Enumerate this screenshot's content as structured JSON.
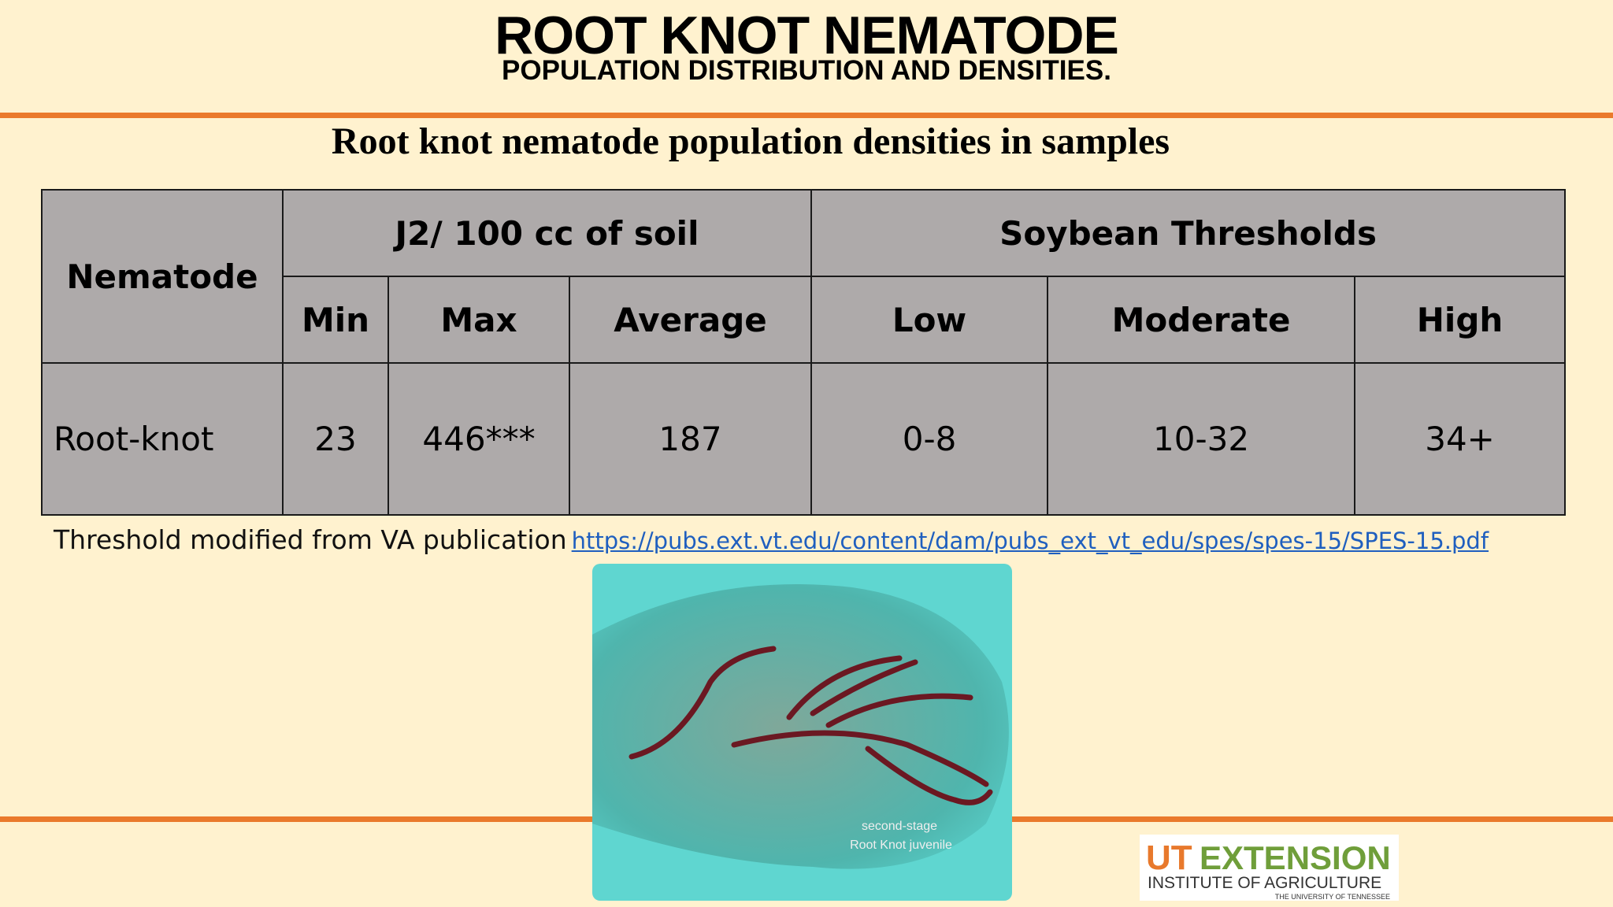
{
  "header": {
    "title": "ROOT KNOT NEMATODE",
    "subtitle": "POPULATION DISTRIBUTION AND DENSITIES."
  },
  "table": {
    "title": "Root knot nematode population densities in samples",
    "row_header": "Nematode",
    "group_headers": [
      "J2/ 100 cc of soil",
      "Soybean Thresholds"
    ],
    "columns": [
      "Min",
      "Max",
      "Average",
      "Low",
      "Moderate",
      "High"
    ],
    "rows": [
      [
        "Root-knot",
        "23",
        "446***",
        "187",
        "0-8",
        "10-32",
        "34+"
      ]
    ]
  },
  "footnote": {
    "text": "Threshold modified from VA publication",
    "link": "https://pubs.ext.vt.edu/content/dam/pubs_ext_vt_edu/spes/spes-15/SPES-15.pdf"
  },
  "image": {
    "caption": [
      "second-stage",
      "Root Knot juvenile"
    ]
  },
  "logo": {
    "mark": "UT",
    "brand": "EXTENSION",
    "line1": "INSTITUTE OF AGRICULTURE",
    "line2": "THE UNIVERSITY OF TENNESSEE"
  }
}
